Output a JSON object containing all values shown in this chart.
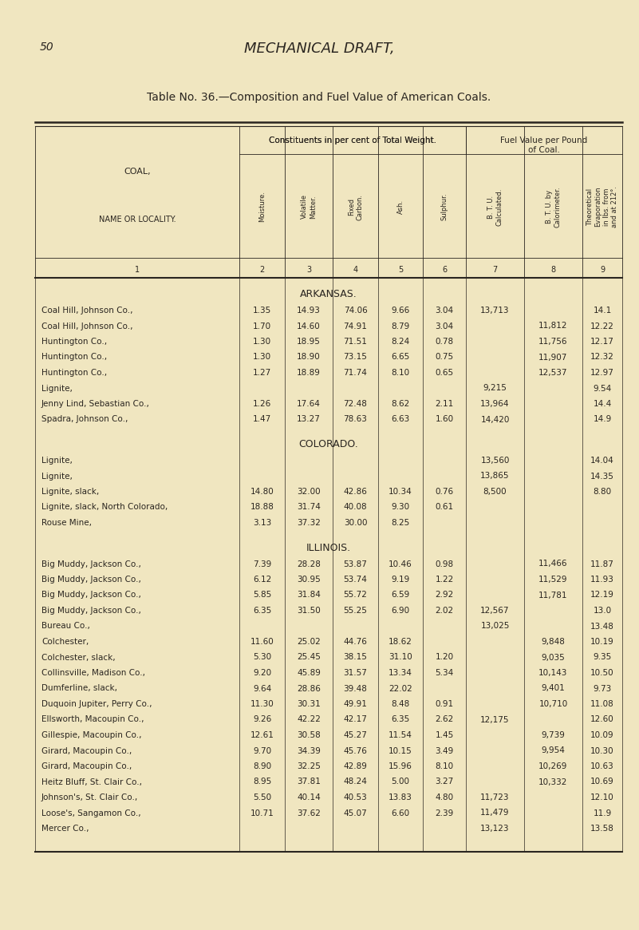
{
  "page_number": "50",
  "page_header": "MECHANICAL DRAFT,",
  "table_title": "Table No. 36.—Composition and Fuel Value of American Coals.",
  "bg_color": "#f0e6c0",
  "text_color": "#2a2520",
  "rotated_labels": [
    "Moisture.",
    "Volatile\nMatter.",
    "Fixed\nCarbon.",
    "Ash.",
    "Sulphur.",
    "B. T. U.\nCalculated.",
    "B. T. U. by\nCalorimeter.",
    "Theoretical\nEvaporation\nin lbs. from\nand at 212°."
  ],
  "sections": [
    {
      "header": "ARKANSAS.",
      "rows": [
        [
          "Coal Hill, Johnson Co.,",
          "1.35",
          "14.93",
          "74.06",
          "9.66",
          "3.04",
          "13,713",
          "",
          "14.1"
        ],
        [
          "Coal Hill, Johnson Co.,",
          "1.70",
          "14.60",
          "74.91",
          "8.79",
          "3.04",
          "",
          "11,812",
          "12.22"
        ],
        [
          "Huntington Co.,",
          "1.30",
          "18.95",
          "71.51",
          "8.24",
          "0.78",
          "",
          "11,756",
          "12.17"
        ],
        [
          "Huntington Co.,",
          "1.30",
          "18.90",
          "73.15",
          "6.65",
          "0.75",
          "",
          "11,907",
          "12.32"
        ],
        [
          "Huntington Co.,",
          "1.27",
          "18.89",
          "71.74",
          "8.10",
          "0.65",
          "",
          "12,537",
          "12.97"
        ],
        [
          "Lignite,",
          "",
          "",
          "",
          "",
          "",
          "9,215",
          "",
          "9.54"
        ],
        [
          "Jenny Lind, Sebastian Co.,",
          "1.26",
          "17.64",
          "72.48",
          "8.62",
          "2.11",
          "13,964",
          "",
          "14.4"
        ],
        [
          "Spadra, Johnson Co.,",
          "1.47",
          "13.27",
          "78.63",
          "6.63",
          "1.60",
          "14,420",
          "",
          "14.9"
        ]
      ]
    },
    {
      "header": "COLORADO.",
      "rows": [
        [
          "Lignite,",
          "",
          "",
          "",
          "",
          "",
          "13,560",
          "",
          "14.04"
        ],
        [
          "Lignite,",
          "",
          "",
          "",
          "",
          "",
          "13,865",
          "",
          "14.35"
        ],
        [
          "Lignite, slack,",
          "14.80",
          "32.00",
          "42.86",
          "10.34",
          "0.76",
          "8,500",
          "",
          "8.80"
        ],
        [
          "Lignite, slack, North Colorado,",
          "18.88",
          "31.74",
          "40.08",
          "9.30",
          "0.61",
          "",
          "",
          ""
        ],
        [
          "Rouse Mine,",
          "3.13",
          "37.32",
          "30.00",
          "8.25",
          "",
          "",
          "",
          ""
        ]
      ]
    },
    {
      "header": "ILLINOIS.",
      "rows": [
        [
          "Big Muddy, Jackson Co.,",
          "7.39",
          "28.28",
          "53.87",
          "10.46",
          "0.98",
          "",
          "11,466",
          "11.87"
        ],
        [
          "Big Muddy, Jackson Co.,",
          "6.12",
          "30.95",
          "53.74",
          "9.19",
          "1.22",
          "",
          "11,529",
          "11.93"
        ],
        [
          "Big Muddy, Jackson Co.,",
          "5.85",
          "31.84",
          "55.72",
          "6.59",
          "2.92",
          "",
          "11,781",
          "12.19"
        ],
        [
          "Big Muddy, Jackson Co.,",
          "6.35",
          "31.50",
          "55.25",
          "6.90",
          "2.02",
          "12,567",
          "",
          "13.0"
        ],
        [
          "Bureau Co.,",
          "",
          "",
          "",
          "",
          "",
          "13,025",
          "",
          "13.48"
        ],
        [
          "Colchester,",
          "11.60",
          "25.02",
          "44.76",
          "18.62",
          "",
          "",
          "9,848",
          "10.19"
        ],
        [
          "Colchester, slack,",
          "5.30",
          "25.45",
          "38.15",
          "31.10",
          "1.20",
          "",
          "9,035",
          "9.35"
        ],
        [
          "Collinsville, Madison Co.,",
          "9.20",
          "45.89",
          "31.57",
          "13.34",
          "5.34",
          "",
          "10,143",
          "10.50"
        ],
        [
          "Dumferline, slack,",
          "9.64",
          "28.86",
          "39.48",
          "22.02",
          "",
          "",
          "9,401",
          "9.73"
        ],
        [
          "Duquoin Jupiter, Perry Co.,",
          "11.30",
          "30.31",
          "49.91",
          "8.48",
          "0.91",
          "",
          "10,710",
          "11.08"
        ],
        [
          "Ellsworth, Macoupin Co.,",
          "9.26",
          "42.22",
          "42.17",
          "6.35",
          "2.62",
          "12,175",
          "",
          "12.60"
        ],
        [
          "Gillespie, Macoupin Co.,",
          "12.61",
          "30.58",
          "45.27",
          "11.54",
          "1.45",
          "",
          "9,739",
          "10.09"
        ],
        [
          "Girard, Macoupin Co.,",
          "9.70",
          "34.39",
          "45.76",
          "10.15",
          "3.49",
          "",
          "9,954",
          "10.30"
        ],
        [
          "Girard, Macoupin Co.,",
          "8.90",
          "32.25",
          "42.89",
          "15.96",
          "8.10",
          "",
          "10,269",
          "10.63"
        ],
        [
          "Heitz Bluff, St. Clair Co.,",
          "8.95",
          "37.81",
          "48.24",
          "5.00",
          "3.27",
          "",
          "10,332",
          "10.69"
        ],
        [
          "Johnson's, St. Clair Co.,",
          "5.50",
          "40.14",
          "40.53",
          "13.83",
          "4.80",
          "11,723",
          "",
          "12.10"
        ],
        [
          "Loose's, Sangamon Co.,",
          "10.71",
          "37.62",
          "45.07",
          "6.60",
          "2.39",
          "11,479",
          "",
          "11.9"
        ],
        [
          "Mercer Co.,",
          "",
          "",
          "",
          "",
          "",
          "13,123",
          "",
          "13.58"
        ]
      ]
    }
  ]
}
